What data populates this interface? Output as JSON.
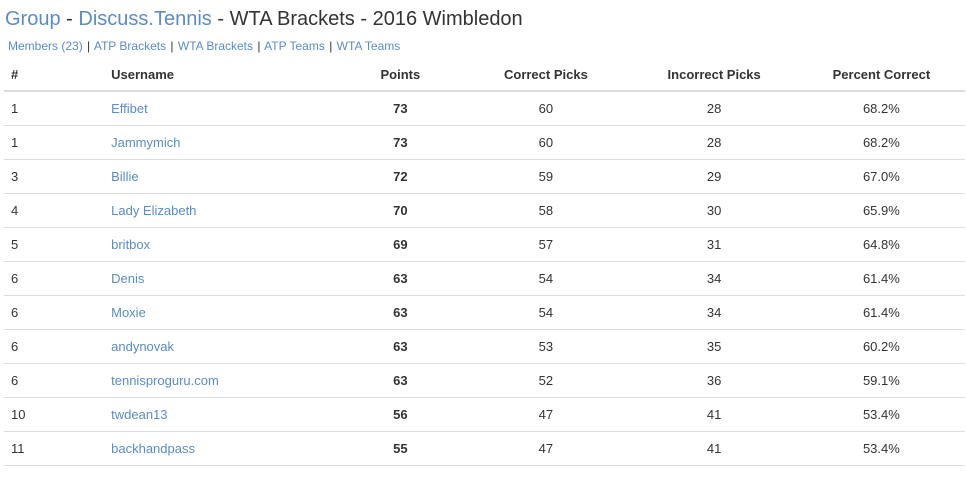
{
  "header": {
    "group_label": "Group",
    "separator": "-",
    "forum_label": "Discuss.Tennis",
    "bracket_label": "WTA Brackets",
    "event_label": "2016 Wimbledon"
  },
  "subnav": {
    "members": "Members (23)",
    "atp_brackets": "ATP Brackets",
    "wta_brackets": "WTA Brackets",
    "atp_teams": "ATP Teams",
    "wta_teams": "WTA Teams",
    "pipe": "|"
  },
  "table": {
    "headers": {
      "rank": "#",
      "username": "Username",
      "points": "Points",
      "correct": "Correct Picks",
      "incorrect": "Incorrect Picks",
      "percent": "Percent Correct"
    },
    "rows": [
      {
        "rank": "1",
        "username": "Effibet",
        "points": "73",
        "correct": "60",
        "incorrect": "28",
        "percent": "68.2%"
      },
      {
        "rank": "1",
        "username": "Jammymich",
        "points": "73",
        "correct": "60",
        "incorrect": "28",
        "percent": "68.2%"
      },
      {
        "rank": "3",
        "username": "Billie",
        "points": "72",
        "correct": "59",
        "incorrect": "29",
        "percent": "67.0%"
      },
      {
        "rank": "4",
        "username": "Lady Elizabeth",
        "points": "70",
        "correct": "58",
        "incorrect": "30",
        "percent": "65.9%"
      },
      {
        "rank": "5",
        "username": "britbox",
        "points": "69",
        "correct": "57",
        "incorrect": "31",
        "percent": "64.8%"
      },
      {
        "rank": "6",
        "username": "Denis",
        "points": "63",
        "correct": "54",
        "incorrect": "34",
        "percent": "61.4%"
      },
      {
        "rank": "6",
        "username": "Moxie",
        "points": "63",
        "correct": "54",
        "incorrect": "34",
        "percent": "61.4%"
      },
      {
        "rank": "6",
        "username": "andynovak",
        "points": "63",
        "correct": "53",
        "incorrect": "35",
        "percent": "60.2%"
      },
      {
        "rank": "6",
        "username": "tennisproguru.com",
        "points": "63",
        "correct": "52",
        "incorrect": "36",
        "percent": "59.1%"
      },
      {
        "rank": "10",
        "username": "twdean13",
        "points": "56",
        "correct": "47",
        "incorrect": "41",
        "percent": "53.4%"
      },
      {
        "rank": "11",
        "username": "backhandpass",
        "points": "55",
        "correct": "47",
        "incorrect": "41",
        "percent": "53.4%"
      }
    ]
  },
  "colors": {
    "link": "#5a8cc6",
    "text": "#333333",
    "border": "#dddddd"
  }
}
